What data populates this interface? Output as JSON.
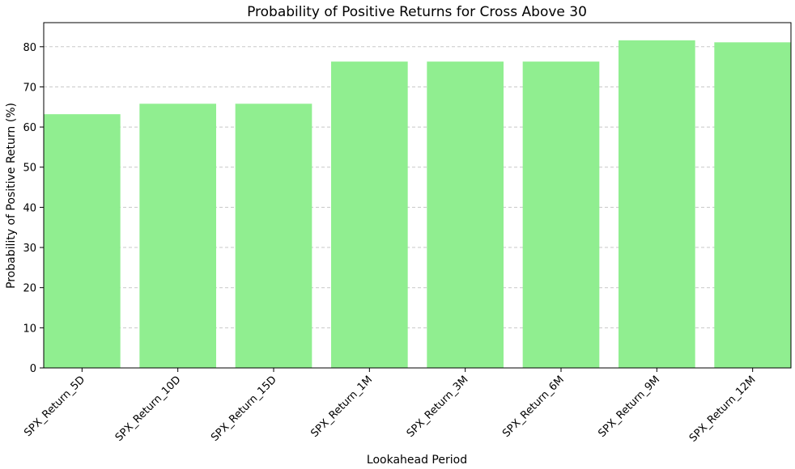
{
  "chart_data": {
    "type": "bar",
    "title": "Probability of Positive Returns for Cross Above 30",
    "xlabel": "Lookahead Period",
    "ylabel": "Probability of Positive Return (%)",
    "categories": [
      "SPX_Return_5D",
      "SPX_Return_10D",
      "SPX_Return_15D",
      "SPX_Return_1M",
      "SPX_Return_3M",
      "SPX_Return_6M",
      "SPX_Return_9M",
      "SPX_Return_12M"
    ],
    "values": [
      63.2,
      65.8,
      65.8,
      76.3,
      76.3,
      76.3,
      81.6,
      81.1
    ],
    "ylim": [
      0,
      86
    ],
    "yticks": [
      0,
      10,
      20,
      30,
      40,
      50,
      60,
      70,
      80
    ],
    "grid": "horizontal dashed",
    "legend": "none",
    "bar_color": "#90ee90"
  }
}
